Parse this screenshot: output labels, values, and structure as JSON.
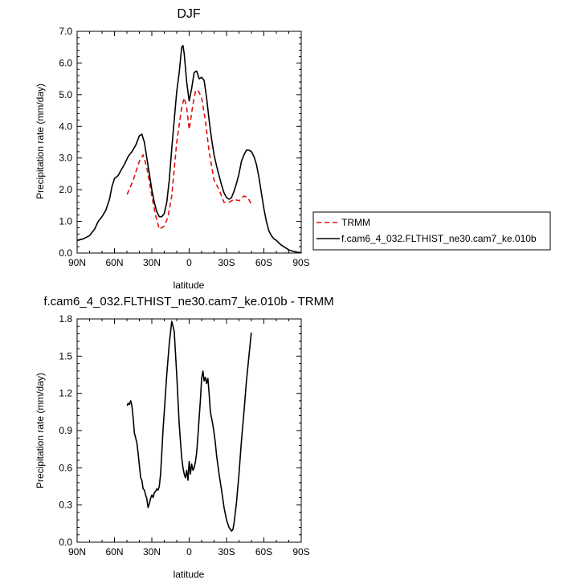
{
  "chart_data": [
    {
      "type": "line",
      "title": "DJF",
      "xlabel": "latitude",
      "ylabel": "Precipitation rate (mm/day)",
      "xlim": [
        90,
        -90
      ],
      "ylim": [
        0,
        7
      ],
      "x_ticks": [
        {
          "value": 90,
          "label": "90N"
        },
        {
          "value": 60,
          "label": "60N"
        },
        {
          "value": 30,
          "label": "30N"
        },
        {
          "value": 0,
          "label": "0"
        },
        {
          "value": -30,
          "label": "30S"
        },
        {
          "value": -60,
          "label": "60S"
        },
        {
          "value": -90,
          "label": "90S"
        }
      ],
      "y_ticks": [
        {
          "value": 0,
          "label": "0.0"
        },
        {
          "value": 1,
          "label": "1.0"
        },
        {
          "value": 2,
          "label": "2.0"
        },
        {
          "value": 3,
          "label": "3.0"
        },
        {
          "value": 4,
          "label": "4.0"
        },
        {
          "value": 5,
          "label": "5.0"
        },
        {
          "value": 6,
          "label": "6.0"
        },
        {
          "value": 7,
          "label": "7.0"
        }
      ],
      "legend_position": "right",
      "series": [
        {
          "name": "TRMM",
          "color": "#e01010",
          "style": "dashed",
          "x": [
            49.9,
            45,
            40,
            37,
            34,
            30,
            27,
            24,
            20,
            17,
            14,
            10,
            6,
            4,
            2,
            0,
            -3,
            -5,
            -7,
            -10,
            -13,
            -16,
            -20,
            -24,
            -28,
            -32,
            -36,
            -40,
            -44,
            -47,
            -49.9
          ],
          "y": [
            1.85,
            2.3,
            2.9,
            3.1,
            2.7,
            1.8,
            1.2,
            0.75,
            0.85,
            1.15,
            1.8,
            3.5,
            4.6,
            4.9,
            4.6,
            3.9,
            4.7,
            5.1,
            5.15,
            4.9,
            4.2,
            3.2,
            2.3,
            2.0,
            1.6,
            1.6,
            1.7,
            1.65,
            1.8,
            1.75,
            1.55
          ]
        },
        {
          "name": "f.cam6_4_032.FLTHIST_ne30.cam7_ke.010b",
          "color": "#000000",
          "style": "solid",
          "x": [
            90,
            85,
            80,
            76,
            73,
            70,
            67,
            64,
            62,
            60,
            57,
            55,
            52,
            49,
            46,
            43,
            40,
            38,
            36,
            34,
            32,
            30,
            28,
            26,
            24,
            22,
            20,
            18,
            16,
            14,
            12,
            10,
            8,
            6,
            5,
            4,
            2,
            0,
            -2,
            -4,
            -6,
            -8,
            -10,
            -12,
            -14,
            -16,
            -18,
            -20,
            -22,
            -24,
            -26,
            -28,
            -30,
            -32,
            -34,
            -36,
            -38,
            -40,
            -42,
            -44,
            -46,
            -48,
            -50,
            -52,
            -54,
            -56,
            -58,
            -60,
            -62,
            -64,
            -66,
            -68,
            -70,
            -72,
            -74,
            -76,
            -78,
            -80,
            -83,
            -86,
            -88,
            -90
          ],
          "y": [
            0.4,
            0.45,
            0.55,
            0.75,
            1.0,
            1.15,
            1.35,
            1.7,
            2.1,
            2.35,
            2.45,
            2.6,
            2.8,
            3.05,
            3.2,
            3.4,
            3.7,
            3.75,
            3.5,
            3.0,
            2.5,
            2.0,
            1.6,
            1.3,
            1.15,
            1.15,
            1.25,
            1.6,
            2.3,
            3.3,
            4.2,
            5.1,
            5.7,
            6.5,
            6.55,
            6.3,
            5.4,
            4.8,
            5.2,
            5.7,
            5.75,
            5.5,
            5.55,
            5.45,
            4.9,
            4.2,
            3.6,
            3.1,
            2.75,
            2.45,
            2.15,
            1.9,
            1.75,
            1.7,
            1.75,
            1.95,
            2.2,
            2.5,
            2.9,
            3.1,
            3.25,
            3.25,
            3.2,
            3.05,
            2.8,
            2.4,
            1.9,
            1.4,
            1.0,
            0.7,
            0.55,
            0.45,
            0.4,
            0.32,
            0.25,
            0.2,
            0.15,
            0.1,
            0.06,
            0.03,
            0.02,
            0.01
          ]
        }
      ]
    },
    {
      "type": "line",
      "title": "f.cam6_4_032.FLTHIST_ne30.cam7_ke.010b - TRMM",
      "xlabel": "latitude",
      "ylabel": "Precipitation rate (mm/day)",
      "xlim": [
        90,
        -90
      ],
      "ylim": [
        0,
        1.8
      ],
      "x_ticks": [
        {
          "value": 90,
          "label": "90N"
        },
        {
          "value": 60,
          "label": "60N"
        },
        {
          "value": 30,
          "label": "30N"
        },
        {
          "value": 0,
          "label": "0"
        },
        {
          "value": -30,
          "label": "30S"
        },
        {
          "value": -60,
          "label": "60S"
        },
        {
          "value": -90,
          "label": "90S"
        }
      ],
      "y_ticks": [
        {
          "value": 0,
          "label": "0.0"
        },
        {
          "value": 0.3,
          "label": "0.3"
        },
        {
          "value": 0.6,
          "label": "0.6"
        },
        {
          "value": 0.9,
          "label": "0.9"
        },
        {
          "value": 1.2,
          "label": "1.2"
        },
        {
          "value": 1.5,
          "label": "1.5"
        },
        {
          "value": 1.8,
          "label": "1.8"
        }
      ],
      "series": [
        {
          "name": "f.cam6_4_032.FLTHIST_ne30.cam7_ke.010b - TRMM",
          "color": "#000000",
          "style": "solid",
          "x": [
            49.9,
            49,
            48,
            47,
            46,
            45,
            44,
            43,
            42,
            41,
            40,
            39,
            38,
            37,
            36,
            35,
            34,
            33,
            32,
            31,
            30,
            29,
            28,
            27,
            26,
            25,
            24,
            23,
            22,
            21,
            20,
            18,
            16,
            14,
            12,
            10,
            8,
            6,
            5,
            4,
            3,
            2,
            1,
            0,
            -1,
            -2,
            -3,
            -4,
            -5,
            -6,
            -7,
            -8,
            -9,
            -10,
            -11,
            -12,
            -13,
            -14,
            -15,
            -16,
            -17,
            -18,
            -19,
            -20,
            -21,
            -22,
            -24,
            -26,
            -28,
            -30,
            -32,
            -34,
            -35,
            -36,
            -38,
            -40,
            -42,
            -44,
            -46,
            -48,
            -49.9
          ],
          "y": [
            1.1,
            1.12,
            1.11,
            1.14,
            1.1,
            1.0,
            0.88,
            0.84,
            0.8,
            0.72,
            0.62,
            0.52,
            0.5,
            0.43,
            0.42,
            0.38,
            0.35,
            0.28,
            0.31,
            0.35,
            0.38,
            0.36,
            0.4,
            0.41,
            0.43,
            0.42,
            0.45,
            0.55,
            0.72,
            0.9,
            1.05,
            1.35,
            1.6,
            1.78,
            1.7,
            1.35,
            0.95,
            0.68,
            0.6,
            0.55,
            0.52,
            0.58,
            0.5,
            0.65,
            0.55,
            0.63,
            0.58,
            0.6,
            0.65,
            0.72,
            0.85,
            1.0,
            1.15,
            1.32,
            1.38,
            1.3,
            1.33,
            1.28,
            1.32,
            1.2,
            1.05,
            1.0,
            0.95,
            0.88,
            0.8,
            0.7,
            0.55,
            0.42,
            0.28,
            0.18,
            0.12,
            0.09,
            0.1,
            0.15,
            0.32,
            0.55,
            0.82,
            1.05,
            1.3,
            1.5,
            1.69
          ]
        }
      ]
    }
  ]
}
